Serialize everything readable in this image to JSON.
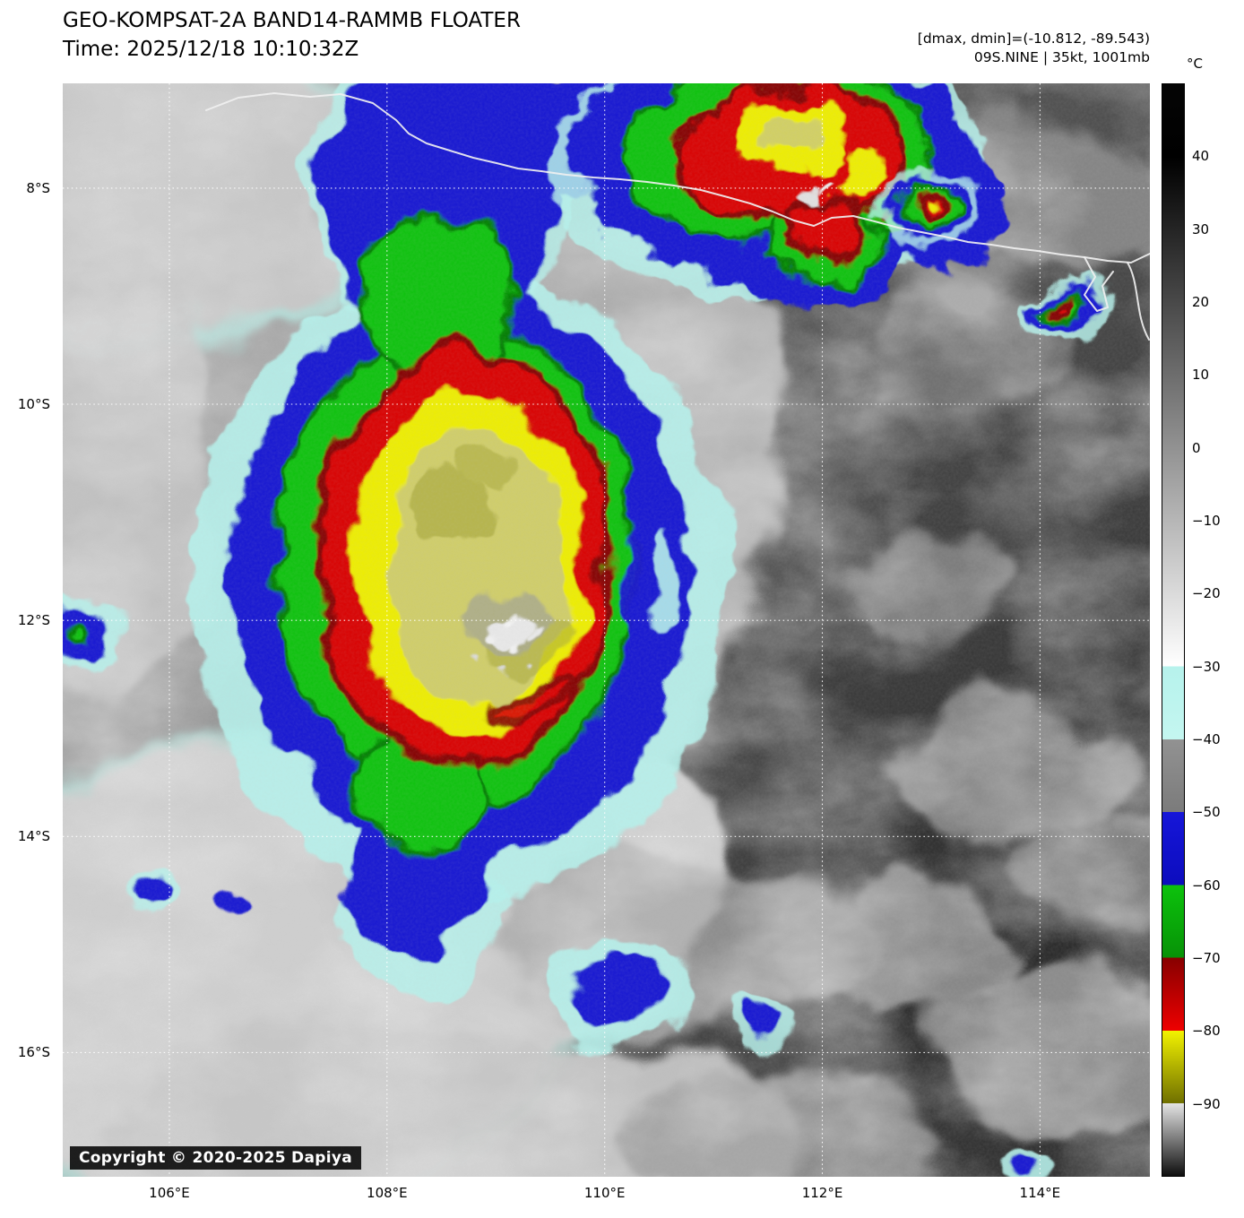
{
  "header": {
    "title": "GEO-KOMPSAT-2A BAND14-RAMMB FLOATER",
    "time": "Time: 2025/12/18 10:10:32Z",
    "dmax_dmin": "[dmax, dmin]=(-10.812, -89.543)",
    "storm": "09S.NINE | 35kt, 1001mb"
  },
  "colorbar": {
    "unit": "°C",
    "range": [
      50,
      -100
    ],
    "ticks": [
      {
        "label": "40",
        "value": 40
      },
      {
        "label": "30",
        "value": 30
      },
      {
        "label": "20",
        "value": 20
      },
      {
        "label": "10",
        "value": 10
      },
      {
        "label": "0",
        "value": 0
      },
      {
        "label": "−10",
        "value": -10
      },
      {
        "label": "−20",
        "value": -20
      },
      {
        "label": "−30",
        "value": -30
      },
      {
        "label": "−40",
        "value": -40
      },
      {
        "label": "−50",
        "value": -50
      },
      {
        "label": "−60",
        "value": -60
      },
      {
        "label": "−70",
        "value": -70
      },
      {
        "label": "−80",
        "value": -80
      },
      {
        "label": "−90",
        "value": -90
      }
    ],
    "segments": [
      {
        "from": 50,
        "to": 40,
        "c0": "#050505",
        "c1": "#000000"
      },
      {
        "from": 40,
        "to": -30,
        "c0": "#000000",
        "c1": "#ffffff"
      },
      {
        "from": -30,
        "to": -40,
        "c0": "#b6f2ec",
        "c1": "#c4f6f0"
      },
      {
        "from": -40,
        "to": -50,
        "c0": "#929292",
        "c1": "#7b7b7b"
      },
      {
        "from": -50,
        "to": -60,
        "c0": "#1616d8",
        "c1": "#0c0cbe"
      },
      {
        "from": -60,
        "to": -70,
        "c0": "#0cc20c",
        "c1": "#079207"
      },
      {
        "from": -70,
        "to": -80,
        "c0": "#870000",
        "c1": "#ee0000"
      },
      {
        "from": -80,
        "to": -90,
        "c0": "#f2f200",
        "c1": "#6f6f00"
      },
      {
        "from": -90,
        "to": -100,
        "c0": "#e4e4e4",
        "c1": "#0d0d0d"
      }
    ]
  },
  "map": {
    "lat_range": [
      7.03,
      17.15
    ],
    "lon_range": [
      105.02,
      115.01
    ],
    "lat_ticks": [
      {
        "label": "8°S",
        "value": 8
      },
      {
        "label": "10°S",
        "value": 10
      },
      {
        "label": "12°S",
        "value": 12
      },
      {
        "label": "14°S",
        "value": 14
      },
      {
        "label": "16°S",
        "value": 16
      }
    ],
    "lon_ticks": [
      {
        "label": "106°E",
        "value": 106
      },
      {
        "label": "108°E",
        "value": 108
      },
      {
        "label": "110°E",
        "value": 110
      },
      {
        "label": "112°E",
        "value": 112
      },
      {
        "label": "114°E",
        "value": 114
      }
    ],
    "copyright": "Copyright © 2020-2025 Dapiya",
    "colors": {
      "cyan": "#b6f2ec",
      "blue": "#1414d2",
      "green": "#0cc20c",
      "green_dark": "#067d06",
      "red": "#d90000",
      "red_dark": "#850000",
      "yellow": "#eeee00",
      "olive": "#a8a83c",
      "core": "#ccca74"
    }
  }
}
